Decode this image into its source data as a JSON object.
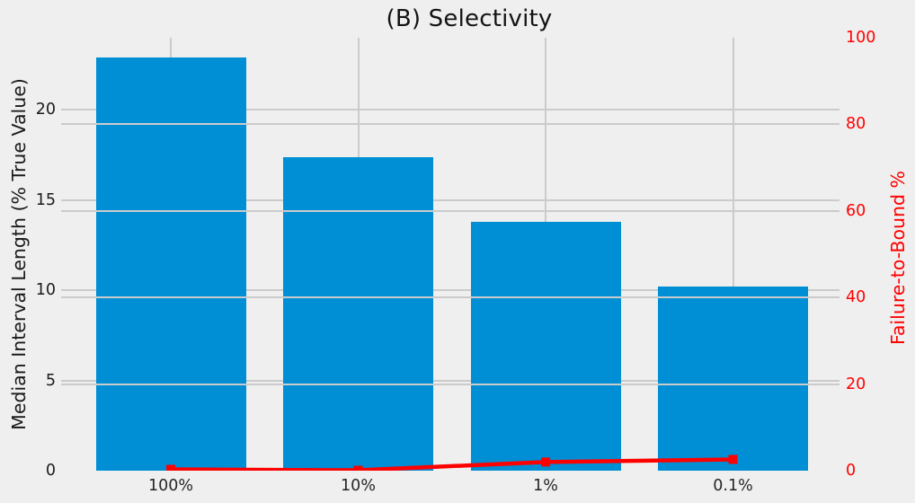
{
  "title": "(B) Selectivity",
  "axes": {
    "left": {
      "label": "Median Interval Length (% True Value)",
      "ticks": [
        0,
        5,
        10,
        15,
        20
      ],
      "lim": [
        0,
        24
      ],
      "color": "#1a1a1a"
    },
    "right": {
      "label": "Failure-to-Bound %",
      "ticks": [
        0,
        20,
        40,
        60,
        80,
        100
      ],
      "lim": [
        0,
        100
      ],
      "color": "#ff0000"
    },
    "x": {
      "tick_labels": [
        "100%",
        "10%",
        "1%",
        "0.1%"
      ]
    }
  },
  "chart_data": {
    "type": "bar",
    "title": "(B) Selectivity",
    "categories": [
      "100%",
      "10%",
      "1%",
      "0.1%"
    ],
    "series": [
      {
        "name": "Median Interval Length (% True Value)",
        "type": "bar",
        "axis": "left",
        "color": "#008fd5",
        "values": [
          22.9,
          17.4,
          13.8,
          10.2
        ]
      },
      {
        "name": "Failure-to-Bound %",
        "type": "line",
        "axis": "right",
        "color": "#ff0000",
        "values": [
          0.3,
          0.1,
          2.0,
          2.6
        ],
        "marker": "square"
      }
    ],
    "xlabel": "",
    "ylabel": "Median Interval Length (% True Value)",
    "ylabel_right": "Failure-to-Bound %",
    "ylim_left": [
      0,
      24
    ],
    "ylim_right": [
      0,
      100
    ],
    "grid": true,
    "legend": false,
    "background_color": "#efefef",
    "grid_color": "#cbcbcb",
    "bar_color": "#008fd5",
    "line_color": "#ff0000"
  }
}
